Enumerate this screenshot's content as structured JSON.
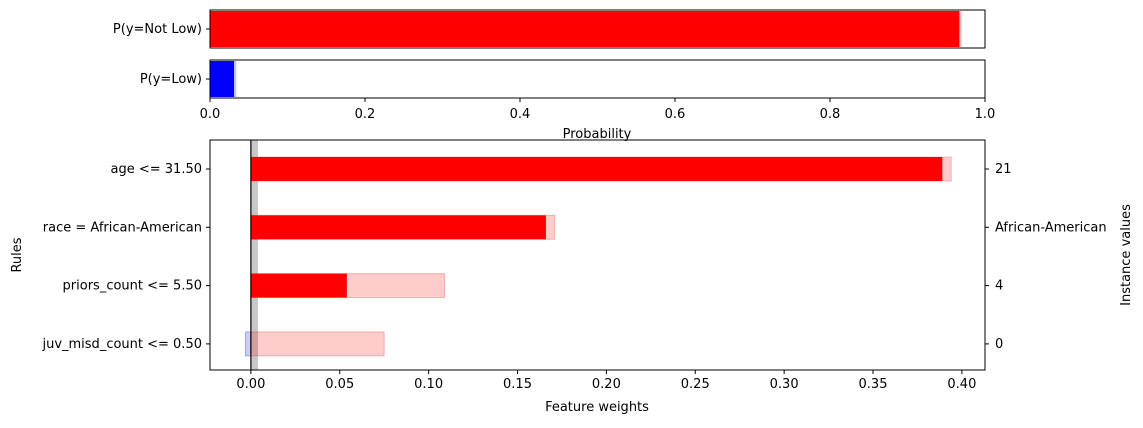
{
  "chart_data": [
    {
      "type": "bar",
      "orientation": "horizontal",
      "categories": [
        "P(y=Not Low)",
        "P(y=Low)"
      ],
      "values": [
        0.967,
        0.031
      ],
      "uncertainty_upper": [
        0.97,
        0.034
      ],
      "colors": [
        "#ff0000",
        "#0000ff"
      ],
      "xlabel": "Probability",
      "xlim": [
        0,
        1
      ],
      "xticks": [
        "0.0",
        "0.2",
        "0.4",
        "0.6",
        "0.8",
        "1.0"
      ]
    },
    {
      "type": "bar",
      "orientation": "horizontal",
      "categories": [
        "age <= 31.50",
        "race = African-American",
        "priors_count <= 5.50",
        "juv_misd_count <= 0.50"
      ],
      "values": [
        0.389,
        0.166,
        0.054,
        0.0
      ],
      "interval_low": [
        0.0,
        0.0,
        0.0,
        -0.003
      ],
      "interval_high": [
        0.394,
        0.171,
        0.109,
        0.075
      ],
      "instance_values": [
        "21",
        "African-American",
        "4",
        "0"
      ],
      "xlabel": "Feature weights",
      "ylabel": "Rules",
      "y2label": "Instance values",
      "xlim": [
        -0.023,
        0.413
      ],
      "xticks": [
        "0.00",
        "0.05",
        "0.10",
        "0.15",
        "0.20",
        "0.25",
        "0.30",
        "0.35",
        "0.40"
      ],
      "positive_color": "#ff0000",
      "negative_color": "#0000ff",
      "zero_band": [
        0.0,
        0.004
      ]
    }
  ]
}
